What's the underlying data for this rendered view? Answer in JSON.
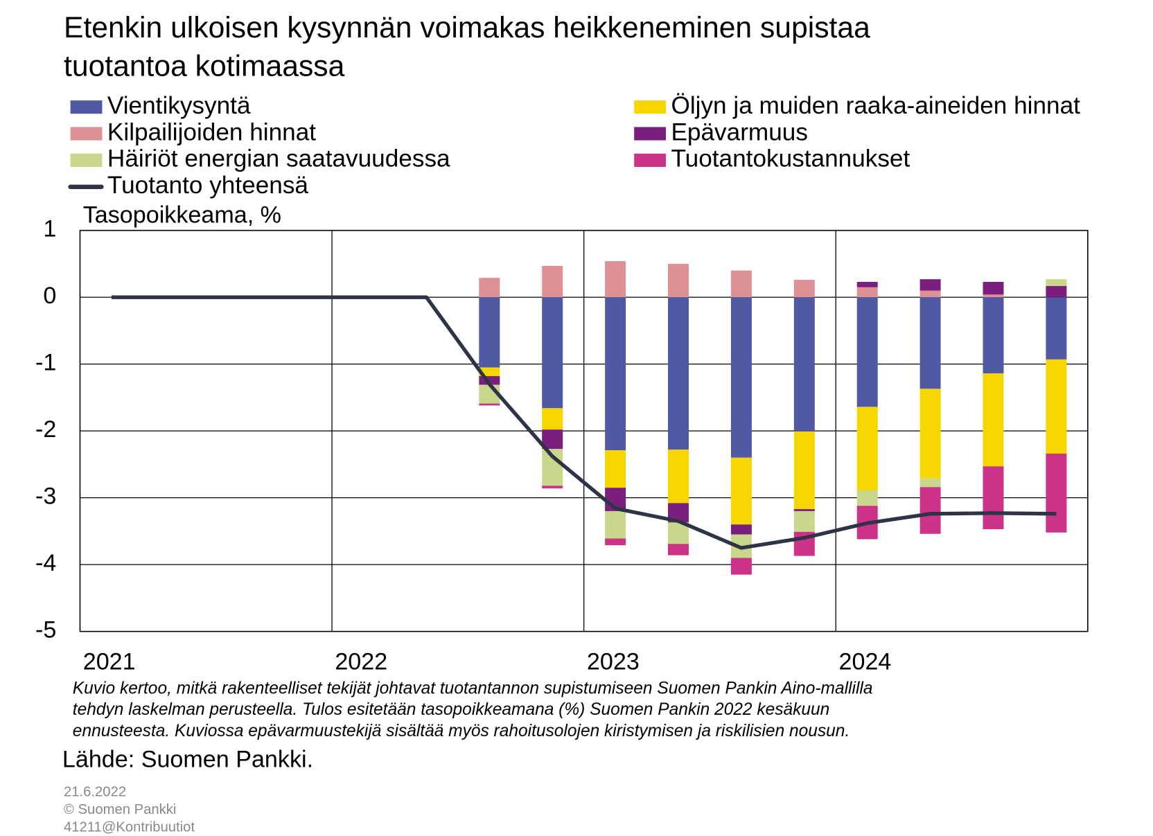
{
  "chart_data": {
    "type": "bar",
    "title": [
      "Etenkin ulkoisen kysynnän voimakas heikkeneminen supistaa",
      "tuotantoa kotimaassa"
    ],
    "y_label": "Tasopoikkeama, %",
    "categories": [
      "2021",
      null,
      null,
      null,
      "2022",
      null,
      null,
      null,
      "2023",
      null,
      null,
      null,
      "2024",
      null,
      null,
      null
    ],
    "ylim": [
      -5,
      1
    ],
    "yticks": [
      1,
      0,
      -1,
      -2,
      -3,
      -4,
      -5
    ],
    "grid": true,
    "series": [
      {
        "name": "Vientikysyntä",
        "color": "#5159a5",
        "values": [
          null,
          null,
          null,
          null,
          null,
          null,
          -1.05,
          -1.66,
          -2.29,
          -2.28,
          -2.4,
          -2.01,
          -1.64,
          -1.37,
          -1.14,
          -0.93
        ]
      },
      {
        "name": "Öljyn ja muiden raaka-aineiden hinnat",
        "color": "#f7d600",
        "values": [
          null,
          null,
          null,
          null,
          null,
          null,
          -0.13,
          -0.32,
          -0.56,
          -0.8,
          -1.0,
          -1.16,
          -1.25,
          -1.34,
          -1.39,
          -1.41
        ]
      },
      {
        "name": "Kilpailijoiden hinnat",
        "color": "#dd9096",
        "values": [
          null,
          null,
          null,
          null,
          null,
          null,
          0.29,
          0.47,
          0.54,
          0.5,
          0.4,
          0.26,
          0.15,
          0.1,
          0.04,
          0
        ]
      },
      {
        "name": "Epävarmuus",
        "color": "#7b1f7f",
        "values": [
          null,
          null,
          null,
          null,
          null,
          null,
          -0.13,
          -0.29,
          -0.35,
          -0.29,
          -0.15,
          -0.03,
          0.08,
          0.17,
          0.19,
          0.17
        ]
      },
      {
        "name": "Häiriöt energian saatavuudessa",
        "color": "#c8d78c",
        "values": [
          null,
          null,
          null,
          null,
          null,
          null,
          -0.28,
          -0.55,
          -0.41,
          -0.32,
          -0.35,
          -0.31,
          -0.23,
          -0.13,
          0,
          0.1
        ]
      },
      {
        "name": "Tuotantokustannukset",
        "color": "#cc3388",
        "values": [
          null,
          null,
          null,
          null,
          null,
          null,
          -0.03,
          -0.04,
          -0.1,
          -0.17,
          -0.25,
          -0.36,
          -0.5,
          -0.7,
          -0.94,
          -1.18
        ]
      },
      {
        "name": "Tuotanto yhteensä",
        "type": "line",
        "color": "#2e3446",
        "values": [
          0,
          0,
          0,
          0,
          0,
          0,
          -1.3,
          -2.38,
          -3.16,
          -3.35,
          -3.75,
          -3.6,
          -3.38,
          -3.24,
          -3.23,
          -3.24
        ]
      }
    ],
    "note": [
      "Kuvio kertoo, mitkä rakenteelliset tekijät johtavat tuotantannon supistumiseen Suomen Pankin Aino-mallilla",
      "tehdyn laskelman perusteella. Tulos esitetään tasopoikkeamana (%) Suomen Pankin 2022 kesäkuun",
      "ennusteesta. Kuviossa epävarmuustekijä sisältää myös rahoitusolojen kiristymisen ja riskilisien nousun."
    ],
    "source": "Lähde: Suomen Pankki.",
    "footer": [
      "21.6.2022",
      "© Suomen Pankki",
      "41211@Kontribuutiot"
    ]
  }
}
